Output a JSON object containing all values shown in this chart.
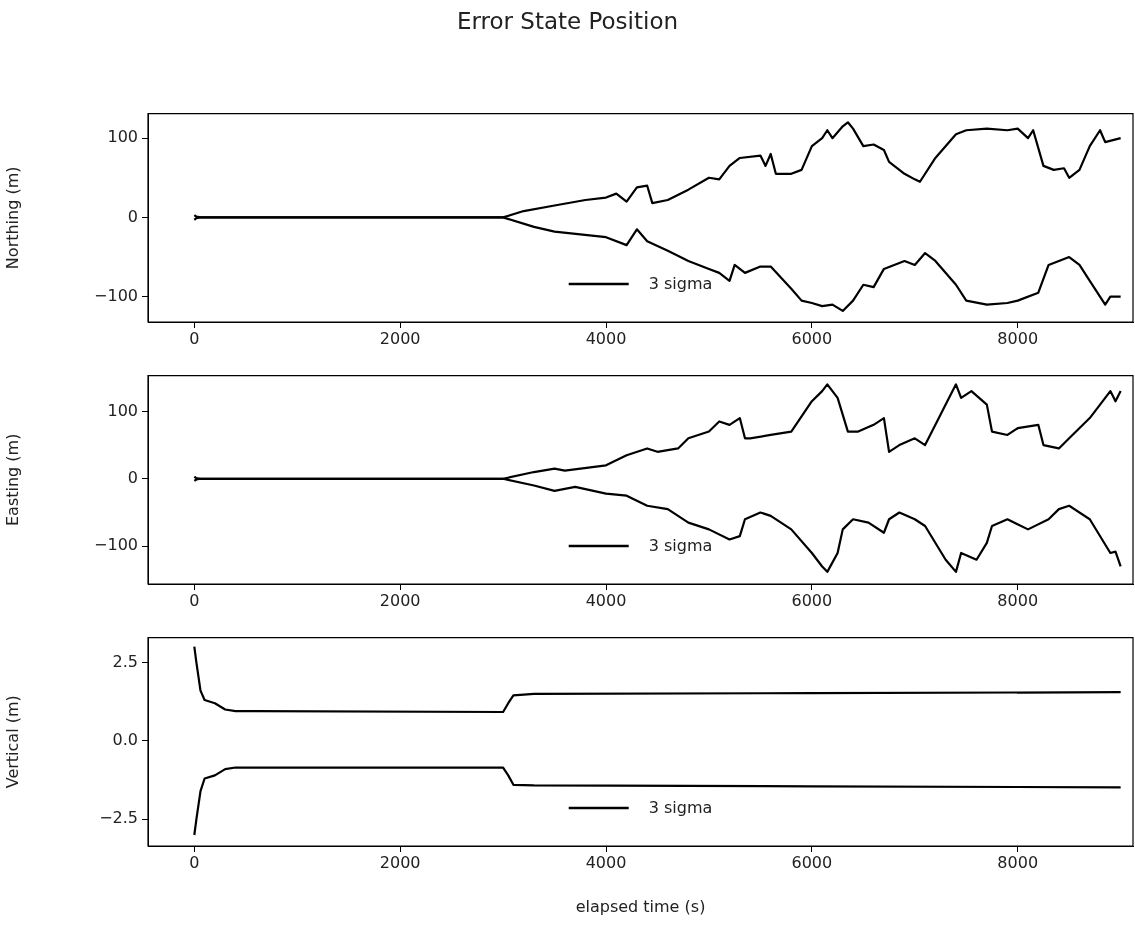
{
  "chart_data": [
    {
      "type": "line",
      "title": "Error State Position",
      "ylabel": "Northing (m)",
      "xlim": [
        -450,
        9120
      ],
      "xticks": [
        0,
        2000,
        4000,
        6000,
        8000
      ],
      "ylim": [
        -132,
        131
      ],
      "yticks": [
        {
          "value": -100,
          "label": "−100"
        },
        0,
        100
      ],
      "grid": false,
      "legend": "bottom",
      "marker": "none",
      "line_style": "solid",
      "series": [
        {
          "name": "3 sigma",
          "color": "#000000",
          "x": [
            0,
            20,
            60,
            3000,
            3200,
            3500,
            3800,
            4000,
            4100,
            4200,
            4300,
            4400,
            4450,
            4600,
            4800,
            5000,
            5100,
            5200,
            5300,
            5500,
            5550,
            5600,
            5650,
            5800,
            5900,
            6000,
            6100,
            6150,
            6200,
            6300,
            6350,
            6400,
            6500,
            6600,
            6700,
            6750,
            6850,
            6900,
            7000,
            7050,
            7200,
            7400,
            7500,
            7700,
            7900,
            8000,
            8100,
            8150,
            8250,
            8350,
            8450,
            8500,
            8600,
            8700,
            8800,
            8850,
            9000
          ],
          "values": [
            3,
            1,
            0,
            0,
            8,
            15,
            22,
            25,
            30,
            20,
            38,
            40,
            18,
            22,
            35,
            50,
            48,
            65,
            75,
            78,
            65,
            80,
            55,
            55,
            60,
            90,
            100,
            110,
            100,
            115,
            120,
            112,
            90,
            92,
            85,
            70,
            60,
            55,
            48,
            45,
            75,
            105,
            110,
            112,
            110,
            112,
            100,
            110,
            65,
            60,
            62,
            50,
            60,
            90,
            110,
            95,
            100
          ]
        },
        {
          "color": "#000000",
          "x": [
            0,
            20,
            60,
            3000,
            3300,
            3500,
            4000,
            4200,
            4300,
            4400,
            4600,
            4800,
            5000,
            5100,
            5200,
            5250,
            5350,
            5500,
            5600,
            5800,
            5900,
            6000,
            6100,
            6200,
            6300,
            6400,
            6500,
            6600,
            6700,
            6800,
            6900,
            7000,
            7100,
            7200,
            7400,
            7500,
            7700,
            7900,
            8000,
            8200,
            8300,
            8400,
            8500,
            8600,
            8700,
            8850,
            8900,
            9000
          ],
          "values": [
            -3,
            -1,
            0,
            0,
            -12,
            -18,
            -25,
            -35,
            -15,
            -30,
            -42,
            -55,
            -65,
            -70,
            -80,
            -60,
            -70,
            -62,
            -62,
            -90,
            -105,
            -108,
            -112,
            -110,
            -118,
            -105,
            -85,
            -88,
            -65,
            -60,
            -55,
            -60,
            -45,
            -55,
            -85,
            -105,
            -110,
            -108,
            -105,
            -95,
            -60,
            -55,
            -50,
            -60,
            -80,
            -110,
            -100,
            -100
          ]
        }
      ]
    },
    {
      "type": "line",
      "ylabel": "Easting (m)",
      "xlim": [
        -450,
        9120
      ],
      "xticks": [
        0,
        2000,
        4000,
        6000,
        8000
      ],
      "ylim": [
        -156,
        153
      ],
      "yticks": [
        {
          "value": -100,
          "label": "−100"
        },
        0,
        100
      ],
      "grid": false,
      "legend": "bottom",
      "marker": "none",
      "line_style": "solid",
      "series": [
        {
          "name": "3 sigma",
          "color": "#000000",
          "x": [
            0,
            20,
            60,
            3000,
            3300,
            3500,
            3600,
            4000,
            4200,
            4400,
            4500,
            4700,
            4800,
            5000,
            5100,
            5200,
            5300,
            5350,
            5400,
            5600,
            5800,
            6000,
            6100,
            6150,
            6250,
            6350,
            6450,
            6600,
            6700,
            6750,
            6850,
            7000,
            7100,
            7400,
            7450,
            7550,
            7700,
            7750,
            7900,
            8000,
            8200,
            8250,
            8400,
            8500,
            8700,
            8900,
            8950,
            9000
          ],
          "values": [
            3,
            1,
            0,
            0,
            10,
            15,
            12,
            20,
            35,
            45,
            40,
            45,
            60,
            70,
            85,
            80,
            90,
            60,
            60,
            65,
            70,
            115,
            130,
            140,
            120,
            70,
            70,
            80,
            90,
            40,
            50,
            60,
            50,
            140,
            120,
            130,
            110,
            70,
            65,
            75,
            80,
            50,
            45,
            60,
            90,
            130,
            115,
            130
          ]
        },
        {
          "color": "#000000",
          "x": [
            0,
            20,
            60,
            3000,
            3300,
            3500,
            3700,
            4000,
            4200,
            4400,
            4600,
            4800,
            5000,
            5200,
            5300,
            5350,
            5500,
            5600,
            5800,
            6000,
            6100,
            6150,
            6250,
            6300,
            6400,
            6550,
            6700,
            6750,
            6850,
            7000,
            7100,
            7300,
            7400,
            7450,
            7600,
            7700,
            7750,
            7900,
            8100,
            8300,
            8400,
            8500,
            8700,
            8900,
            8950,
            9000
          ],
          "values": [
            -3,
            -1,
            0,
            0,
            -10,
            -18,
            -12,
            -22,
            -25,
            -40,
            -45,
            -65,
            -75,
            -90,
            -85,
            -60,
            -50,
            -55,
            -75,
            -110,
            -130,
            -138,
            -110,
            -75,
            -60,
            -65,
            -80,
            -60,
            -50,
            -60,
            -70,
            -120,
            -138,
            -110,
            -120,
            -95,
            -70,
            -60,
            -75,
            -60,
            -45,
            -40,
            -60,
            -110,
            -108,
            -130
          ]
        }
      ]
    },
    {
      "type": "line",
      "ylabel": "Vertical (m)",
      "xlabel": "elapsed time (s)",
      "xlim": [
        -450,
        9120
      ],
      "xticks": [
        0,
        2000,
        4000,
        6000,
        8000
      ],
      "ylim": [
        -3.35,
        3.29
      ],
      "yticks": [
        {
          "value": -2.5,
          "label": "−2.5"
        },
        {
          "value": 0,
          "label": "0.0"
        },
        2.5
      ],
      "grid": false,
      "legend": "bottom",
      "marker": "none",
      "line_style": "solid",
      "series": [
        {
          "name": "3 sigma",
          "color": "#000000",
          "x": [
            0,
            20,
            60,
            100,
            200,
            300,
            400,
            3000,
            3050,
            3100,
            3300,
            6000,
            9000
          ],
          "values": [
            3.0,
            2.5,
            1.6,
            1.3,
            1.2,
            1.0,
            0.95,
            0.92,
            1.2,
            1.45,
            1.5,
            1.52,
            1.55
          ]
        },
        {
          "color": "#000000",
          "x": [
            0,
            20,
            60,
            100,
            200,
            300,
            400,
            3000,
            3050,
            3100,
            3300,
            6000,
            9000
          ],
          "values": [
            -3.0,
            -2.5,
            -1.6,
            -1.2,
            -1.1,
            -0.9,
            -0.85,
            -0.85,
            -1.1,
            -1.4,
            -1.42,
            -1.45,
            -1.48
          ]
        }
      ]
    }
  ]
}
